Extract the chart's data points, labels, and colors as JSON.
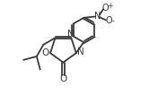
{
  "bg_color": "#ffffff",
  "line_color": "#3a3a3a",
  "line_width": 1.3,
  "font_size": 6.5,
  "figsize": [
    1.76,
    1.06
  ],
  "dpi": 100,
  "xlim": [
    0,
    17.6
  ],
  "ylim": [
    0,
    10.6
  ]
}
